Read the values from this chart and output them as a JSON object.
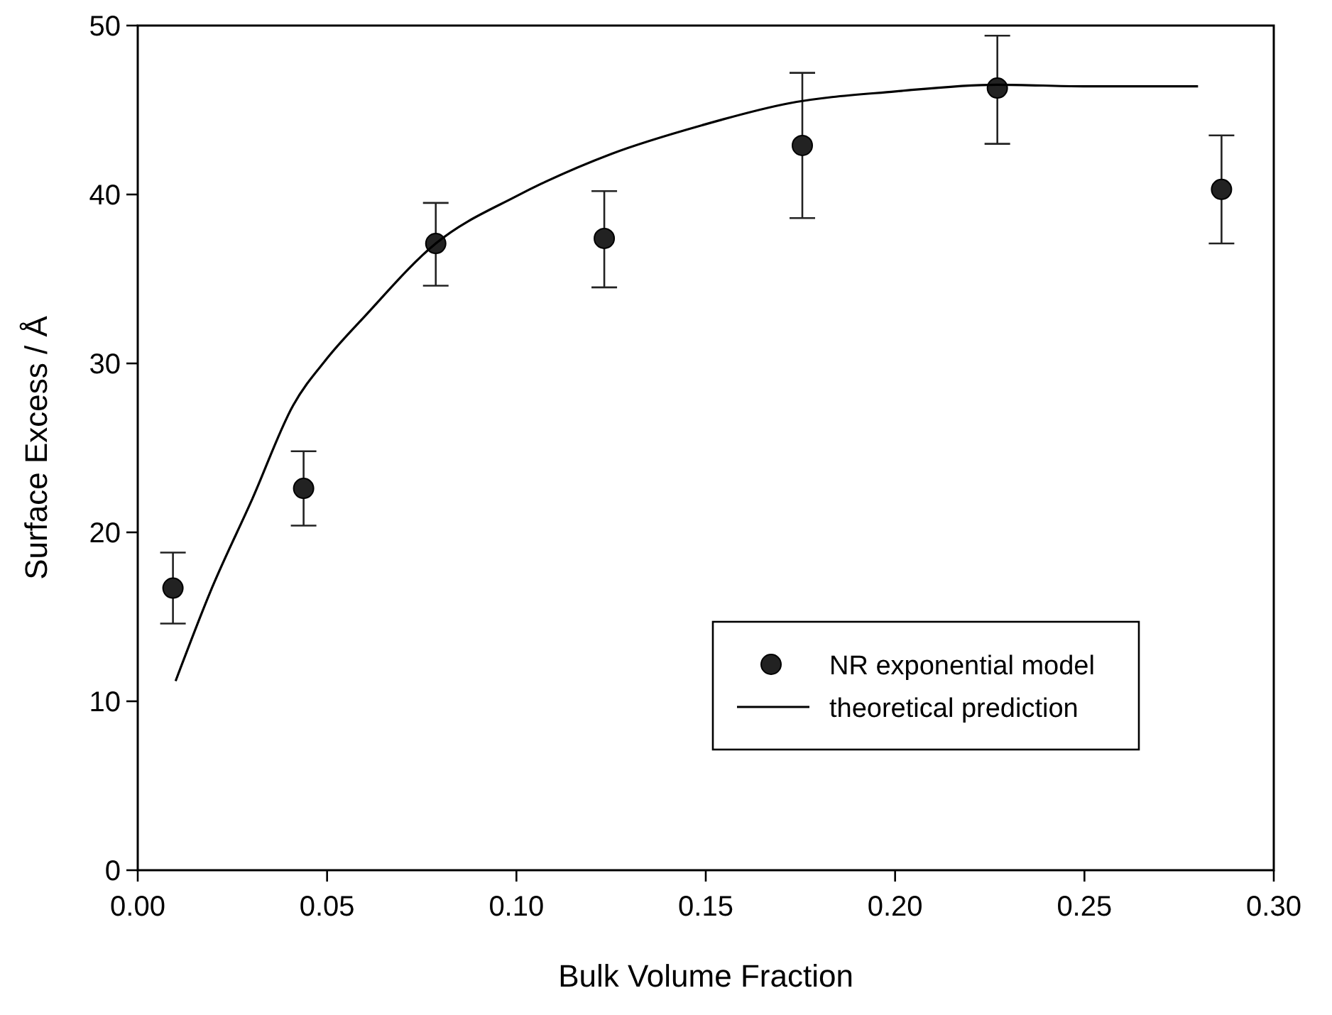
{
  "chart_data": {
    "type": "scatter",
    "xlabel": "Bulk Volume Fraction",
    "ylabel": "Surface Excess / Å",
    "xlim": [
      0,
      0.3
    ],
    "xticks": [
      {
        "value": 0,
        "label": "0.00"
      },
      {
        "value": 0.05,
        "label": "0.05"
      },
      {
        "value": 0.1,
        "label": "0.10"
      },
      {
        "value": 0.15,
        "label": "0.15"
      },
      {
        "value": 0.2,
        "label": "0.20"
      },
      {
        "value": 0.25,
        "label": "0.25"
      },
      {
        "value": 0.3,
        "label": "0.30"
      }
    ],
    "ylim": [
      0,
      50
    ],
    "yticks": [
      0,
      10,
      20,
      30,
      40,
      50
    ],
    "grid": false,
    "legend": "bottom right",
    "series": [
      {
        "name": "NR exponential model",
        "marker": "circle",
        "color": "#222222",
        "x": [
          0.0093,
          0.0438,
          0.0787,
          0.1232,
          0.1755,
          0.227,
          0.2862
        ],
        "values": [
          16.7,
          22.6,
          37.1,
          37.4,
          42.9,
          46.3,
          40.3
        ],
        "errors": [
          [
            14.6,
            18.8
          ],
          [
            20.4,
            24.8
          ],
          [
            34.6,
            39.5
          ],
          [
            34.5,
            40.2
          ],
          [
            38.6,
            47.2
          ],
          [
            43.0,
            49.4
          ],
          [
            37.1,
            43.5
          ]
        ]
      },
      {
        "name": "theoretical prediction",
        "type": "line",
        "marker": "none",
        "line_style": "solid",
        "color": "#000000",
        "x": [
          0.01,
          0.0192,
          0.0303,
          0.041,
          0.05,
          0.06,
          0.0787,
          0.1,
          0.125,
          0.149,
          0.172,
          0.2,
          0.227,
          0.251,
          0.28
        ],
        "values": [
          11.2,
          16.5,
          22.0,
          27.5,
          30.3,
          32.8,
          37.1,
          39.9,
          42.4,
          44.1,
          45.4,
          46.1,
          46.5,
          46.4,
          46.4
        ]
      }
    ]
  }
}
